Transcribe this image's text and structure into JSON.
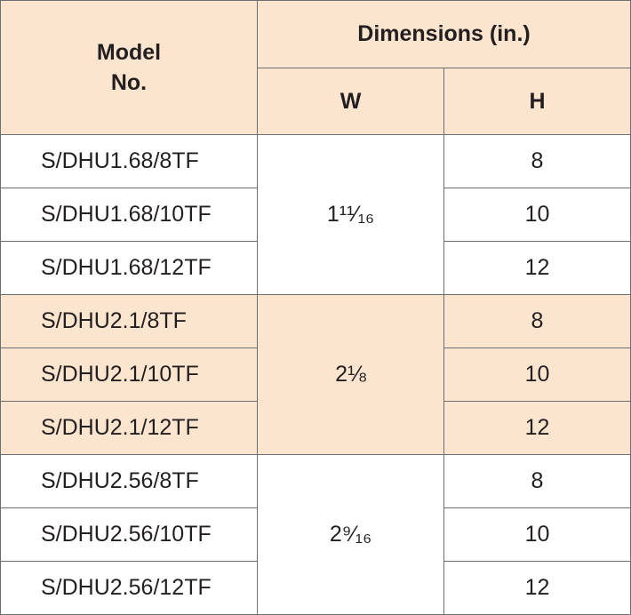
{
  "header": {
    "model_no": "Model No.",
    "dimensions": "Dimensions (in.)",
    "w": "W",
    "h": "H"
  },
  "groups": [
    {
      "w": "1¹¹⁄₁₆",
      "rows": [
        {
          "model": "S/DHU1.68/8TF",
          "h": 8
        },
        {
          "model": "S/DHU1.68/10TF",
          "h": 10
        },
        {
          "model": "S/DHU1.68/12TF",
          "h": 12
        }
      ]
    },
    {
      "w": "2⅛",
      "rows": [
        {
          "model": "S/DHU2.1/8TF",
          "h": 8
        },
        {
          "model": "S/DHU2.1/10TF",
          "h": 10
        },
        {
          "model": "S/DHU2.1/12TF",
          "h": 12
        }
      ]
    },
    {
      "w": "2⁹⁄₁₆",
      "rows": [
        {
          "model": "S/DHU2.56/8TF",
          "h": 8
        },
        {
          "model": "S/DHU2.56/10TF",
          "h": 10
        },
        {
          "model": "S/DHU2.56/12TF",
          "h": 12
        }
      ]
    }
  ]
}
